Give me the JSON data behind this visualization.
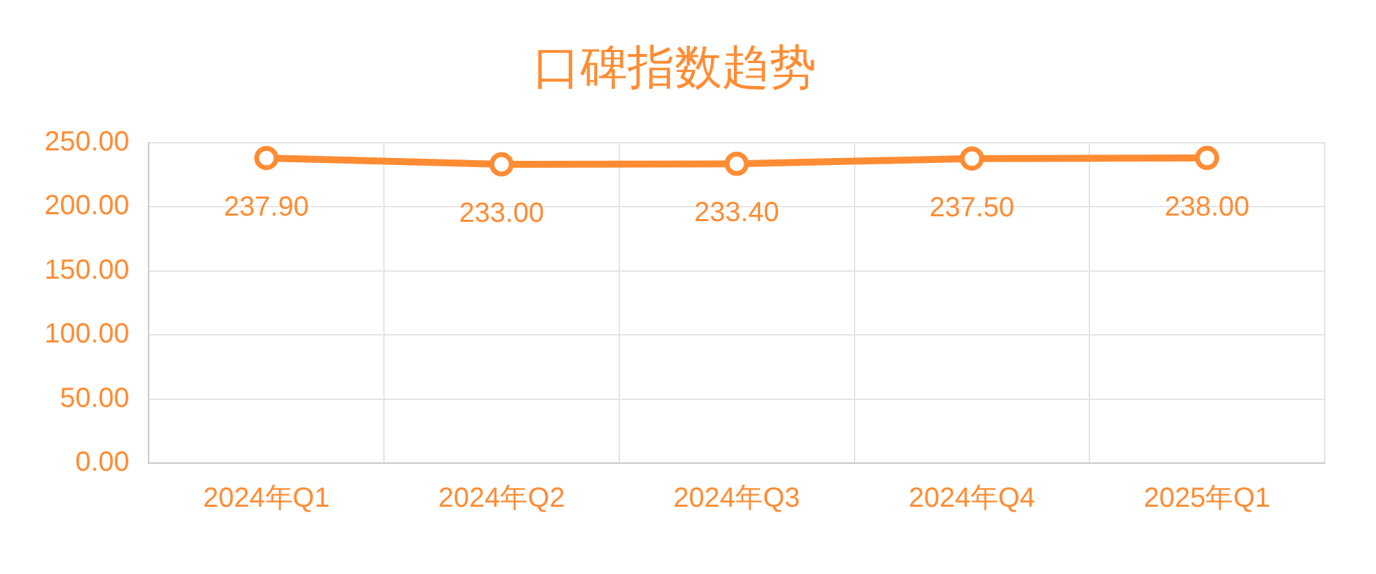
{
  "chart_data": {
    "type": "line",
    "title": "口碑指数趋势",
    "categories": [
      "2024年Q1",
      "2024年Q2",
      "2024年Q3",
      "2024年Q4",
      "2025年Q1"
    ],
    "series": [
      {
        "color": "#ff8c33",
        "values": [
          237.9,
          233.0,
          233.4,
          237.5,
          238.0
        ],
        "value_labels": [
          "237.90",
          "233.00",
          "233.40",
          "237.50",
          "238.00"
        ]
      }
    ],
    "ylim": [
      0,
      250
    ],
    "yticks": [
      {
        "value": 0,
        "label": "0.00"
      },
      {
        "value": 50,
        "label": "50.00"
      },
      {
        "value": 100,
        "label": "100.00"
      },
      {
        "value": 150,
        "label": "150.00"
      },
      {
        "value": 200,
        "label": "200.00"
      },
      {
        "value": 250,
        "label": "250.00"
      }
    ],
    "grid": true,
    "legend": false,
    "marker": "circle",
    "line_style": "solid"
  }
}
